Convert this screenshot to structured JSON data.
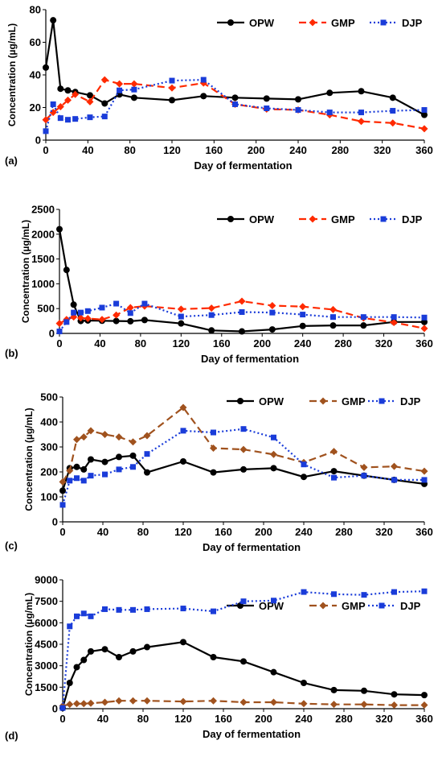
{
  "chart_data": [
    {
      "type": "line",
      "panel_label": "(a)",
      "xlabel": "Day of fermentation",
      "ylabel": "Concentration (µg/mL)",
      "xlim": [
        0,
        360
      ],
      "ylim": [
        0,
        80
      ],
      "xticks": [
        0,
        40,
        80,
        120,
        160,
        200,
        240,
        280,
        320,
        360
      ],
      "yticks": [
        0,
        20,
        40,
        60,
        80
      ],
      "legend_position": "top-right",
      "series": [
        {
          "name": "OPW",
          "color": "#000000",
          "marker": "circle",
          "dash": "solid",
          "x": [
            0,
            7,
            14,
            21,
            28,
            42,
            56,
            70,
            84,
            120,
            150,
            180,
            210,
            240,
            270,
            300,
            330,
            360
          ],
          "y": [
            44.5,
            73.5,
            31.5,
            30.5,
            29.5,
            27.5,
            22.5,
            28,
            26,
            24.5,
            27,
            26,
            25.5,
            25,
            29,
            30,
            26,
            15.5
          ]
        },
        {
          "name": "GMP",
          "color": "#ff2a00",
          "marker": "diamond",
          "dash": "dashed",
          "x": [
            0,
            7,
            14,
            21,
            28,
            42,
            56,
            70,
            84,
            120,
            150,
            180,
            210,
            240,
            270,
            300,
            330,
            360
          ],
          "y": [
            12.5,
            17,
            20.5,
            24.5,
            28,
            23.5,
            37,
            34.5,
            34.5,
            32,
            35,
            22,
            19,
            18.5,
            15.5,
            11.5,
            10.5,
            7
          ]
        },
        {
          "name": "DJP",
          "color": "#1a3cd9",
          "marker": "square",
          "dash": "dotted",
          "x": [
            0,
            7,
            14,
            21,
            28,
            42,
            56,
            70,
            84,
            120,
            150,
            180,
            210,
            240,
            270,
            300,
            330,
            360
          ],
          "y": [
            5.5,
            22,
            13.5,
            12.5,
            13,
            14,
            14.5,
            30.5,
            31,
            36.5,
            37,
            22,
            19.5,
            18.5,
            17,
            17,
            18,
            18.5
          ]
        }
      ]
    },
    {
      "type": "line",
      "panel_label": "(b)",
      "xlabel": "Day of fermentation",
      "ylabel": "Concentration (µg/mL)",
      "xlim": [
        0,
        360
      ],
      "ylim": [
        0,
        2500
      ],
      "xticks": [
        0,
        40,
        80,
        120,
        160,
        200,
        240,
        280,
        320,
        360
      ],
      "yticks": [
        0,
        500,
        1000,
        1500,
        2000,
        2500
      ],
      "legend_position": "top-right",
      "series": [
        {
          "name": "OPW",
          "color": "#000000",
          "marker": "circle",
          "dash": "solid",
          "x": [
            0,
            7,
            14,
            21,
            28,
            42,
            56,
            70,
            84,
            120,
            150,
            180,
            210,
            240,
            270,
            300,
            330,
            360
          ],
          "y": [
            2100,
            1280,
            580,
            250,
            260,
            255,
            250,
            245,
            270,
            200,
            60,
            40,
            80,
            150,
            160,
            160,
            230,
            230
          ]
        },
        {
          "name": "GMP",
          "color": "#ff2a00",
          "marker": "diamond",
          "dash": "dashed",
          "x": [
            0,
            7,
            14,
            21,
            28,
            42,
            56,
            70,
            84,
            120,
            150,
            180,
            210,
            240,
            270,
            300,
            330,
            360
          ],
          "y": [
            200,
            280,
            330,
            310,
            300,
            280,
            370,
            520,
            550,
            490,
            510,
            650,
            560,
            540,
            480,
            310,
            220,
            100
          ]
        },
        {
          "name": "DJP",
          "color": "#1a3cd9",
          "marker": "square",
          "dash": "dotted",
          "x": [
            0,
            7,
            14,
            21,
            28,
            42,
            56,
            70,
            84,
            120,
            150,
            180,
            210,
            240,
            270,
            300,
            330,
            360
          ],
          "y": [
            40,
            230,
            420,
            420,
            450,
            520,
            600,
            410,
            600,
            340,
            370,
            430,
            420,
            380,
            330,
            330,
            330,
            320
          ]
        }
      ]
    },
    {
      "type": "line",
      "panel_label": "(c)",
      "xlabel": "Day of fermentation",
      "ylabel": "Concentration (µg/mL)",
      "xlim": [
        0,
        360
      ],
      "ylim": [
        0,
        500
      ],
      "xticks": [
        0,
        40,
        80,
        120,
        160,
        200,
        240,
        280,
        320,
        360
      ],
      "yticks": [
        0,
        100,
        200,
        300,
        400,
        500
      ],
      "legend_position": "top-right",
      "series": [
        {
          "name": "OPW",
          "color": "#000000",
          "marker": "circle",
          "dash": "solid",
          "x": [
            0,
            7,
            14,
            21,
            28,
            42,
            56,
            70,
            84,
            120,
            150,
            180,
            210,
            240,
            270,
            300,
            330,
            360
          ],
          "y": [
            125,
            215,
            220,
            210,
            250,
            240,
            260,
            265,
            198,
            242,
            198,
            210,
            215,
            180,
            203,
            185,
            168,
            152
          ]
        },
        {
          "name": "GMP",
          "color": "#a0521e",
          "marker": "diamond",
          "dash": "dashed",
          "x": [
            0,
            7,
            14,
            21,
            28,
            42,
            56,
            70,
            84,
            120,
            150,
            180,
            210,
            240,
            270,
            300,
            330,
            360
          ],
          "y": [
            160,
            205,
            330,
            340,
            365,
            350,
            340,
            320,
            345,
            458,
            295,
            290,
            270,
            238,
            282,
            218,
            222,
            203
          ]
        },
        {
          "name": "DJP",
          "color": "#1a3cd9",
          "marker": "square",
          "dash": "dotted",
          "x": [
            0,
            7,
            14,
            21,
            28,
            42,
            56,
            70,
            84,
            120,
            150,
            180,
            210,
            240,
            270,
            300,
            330,
            360
          ],
          "y": [
            68,
            165,
            175,
            165,
            185,
            190,
            210,
            220,
            272,
            365,
            358,
            372,
            338,
            230,
            177,
            185,
            168,
            168
          ]
        }
      ]
    },
    {
      "type": "line",
      "panel_label": "(d)",
      "xlabel": "Day of fermentation",
      "ylabel": "Concentration (µg/mL)",
      "xlim": [
        0,
        360
      ],
      "ylim": [
        0,
        9000
      ],
      "xticks": [
        0,
        40,
        80,
        120,
        160,
        200,
        240,
        280,
        320,
        360
      ],
      "yticks": [
        0,
        1500,
        3000,
        4500,
        6000,
        7500,
        9000
      ],
      "legend_position": "top-right",
      "series": [
        {
          "name": "OPW",
          "color": "#000000",
          "marker": "circle",
          "dash": "solid",
          "x": [
            0,
            7,
            14,
            21,
            28,
            42,
            56,
            70,
            84,
            120,
            150,
            180,
            210,
            240,
            270,
            300,
            330,
            360
          ],
          "y": [
            50,
            1800,
            2900,
            3400,
            4000,
            4150,
            3600,
            4000,
            4300,
            4650,
            3600,
            3300,
            2550,
            1800,
            1300,
            1250,
            1000,
            950
          ]
        },
        {
          "name": "GMP",
          "color": "#a0521e",
          "marker": "diamond",
          "dash": "dashed",
          "x": [
            0,
            7,
            14,
            21,
            28,
            42,
            56,
            70,
            84,
            120,
            150,
            180,
            210,
            240,
            270,
            300,
            330,
            360
          ],
          "y": [
            200,
            300,
            350,
            350,
            380,
            450,
            550,
            550,
            550,
            500,
            550,
            450,
            450,
            350,
            300,
            300,
            250,
            250
          ]
        },
        {
          "name": "DJP",
          "color": "#1a3cd9",
          "marker": "square",
          "dash": "dotted",
          "x": [
            0,
            7,
            14,
            21,
            28,
            42,
            56,
            70,
            84,
            120,
            150,
            180,
            210,
            240,
            270,
            300,
            330,
            360
          ],
          "y": [
            50,
            5750,
            6450,
            6650,
            6450,
            6950,
            6900,
            6900,
            6950,
            7000,
            6800,
            7500,
            7550,
            8150,
            8000,
            7950,
            8150,
            8200
          ]
        }
      ]
    }
  ]
}
